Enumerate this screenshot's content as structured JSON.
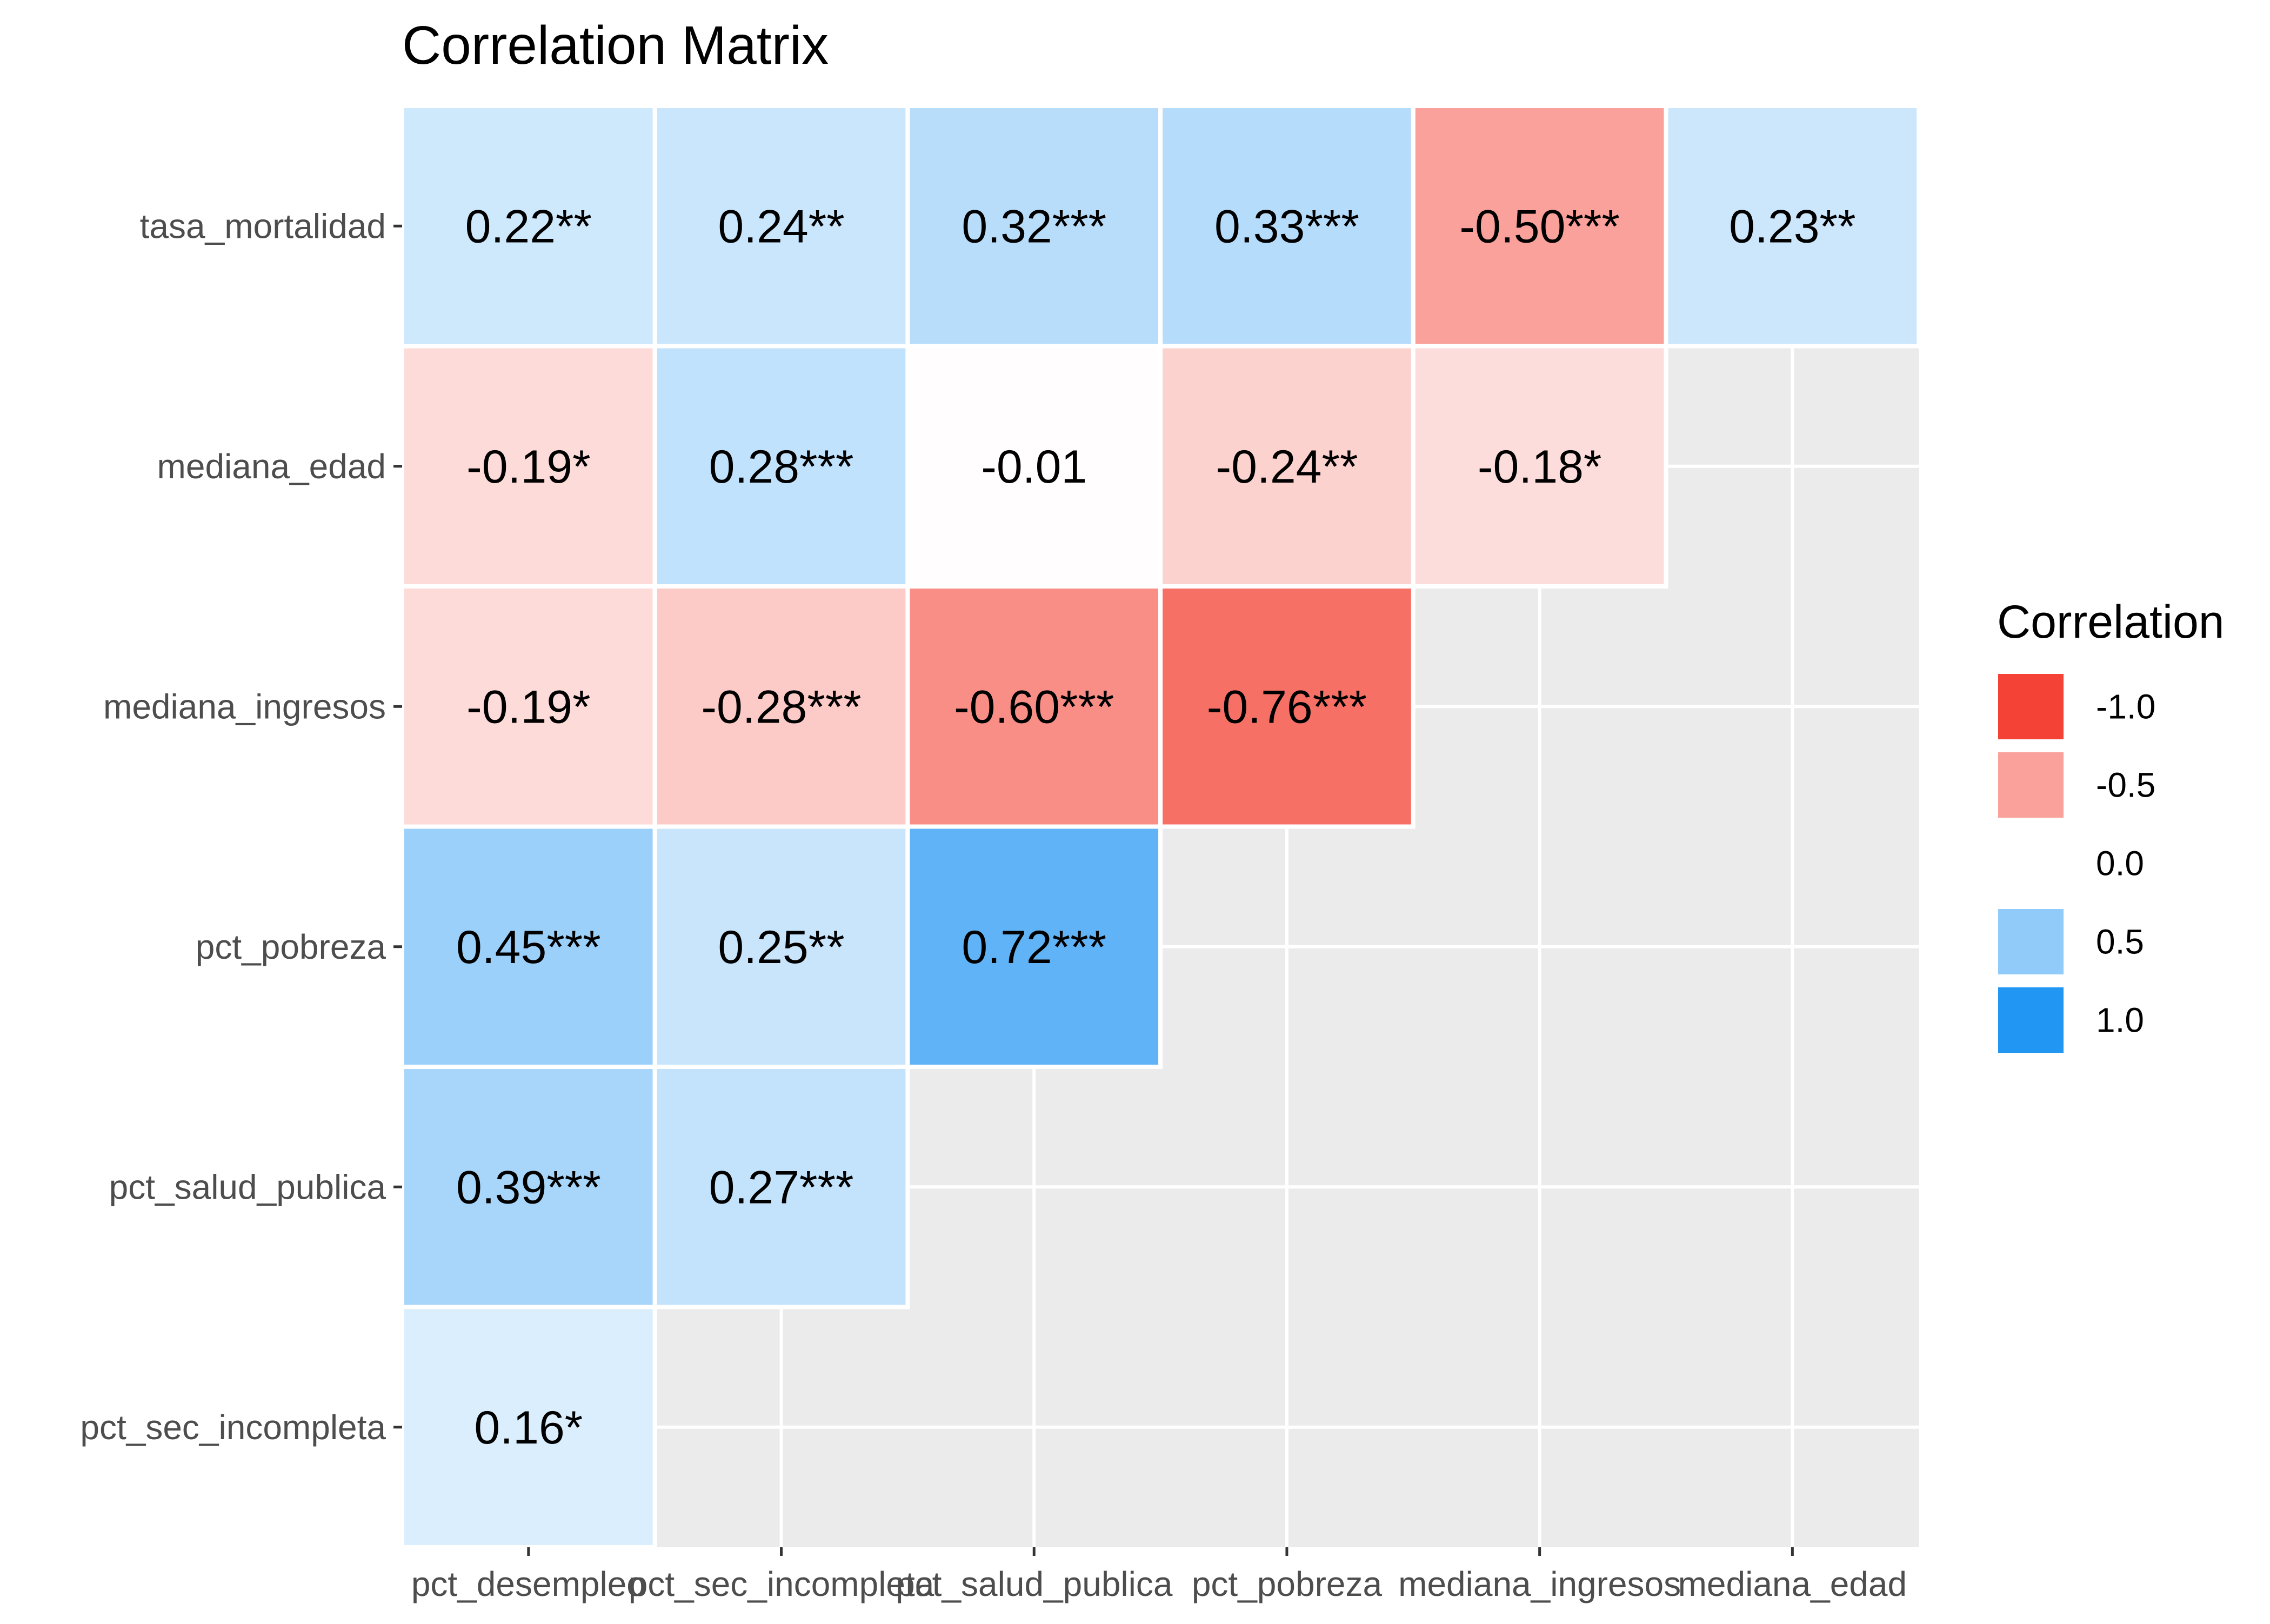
{
  "chart_data": {
    "type": "heatmap",
    "title": "Correlation Matrix",
    "x_categories": [
      "pct_desempleo",
      "pct_sec_incompleta",
      "pct_salud_publica",
      "pct_pobreza",
      "mediana_ingresos",
      "mediana_edad"
    ],
    "y_categories": [
      "tasa_mortalidad",
      "mediana_edad",
      "mediana_ingresos",
      "pct_pobreza",
      "pct_salud_publica",
      "pct_sec_incompleta"
    ],
    "cells": [
      {
        "x": "pct_desempleo",
        "y": "tasa_mortalidad",
        "value": 0.22,
        "label": "0.22**"
      },
      {
        "x": "pct_sec_incompleta",
        "y": "tasa_mortalidad",
        "value": 0.24,
        "label": "0.24**"
      },
      {
        "x": "pct_salud_publica",
        "y": "tasa_mortalidad",
        "value": 0.32,
        "label": "0.32***"
      },
      {
        "x": "pct_pobreza",
        "y": "tasa_mortalidad",
        "value": 0.33,
        "label": "0.33***"
      },
      {
        "x": "mediana_ingresos",
        "y": "tasa_mortalidad",
        "value": -0.5,
        "label": "-0.50***"
      },
      {
        "x": "mediana_edad",
        "y": "tasa_mortalidad",
        "value": 0.23,
        "label": "0.23**"
      },
      {
        "x": "pct_desempleo",
        "y": "mediana_edad",
        "value": -0.19,
        "label": "-0.19*"
      },
      {
        "x": "pct_sec_incompleta",
        "y": "mediana_edad",
        "value": 0.28,
        "label": "0.28***"
      },
      {
        "x": "pct_salud_publica",
        "y": "mediana_edad",
        "value": -0.01,
        "label": "-0.01"
      },
      {
        "x": "pct_pobreza",
        "y": "mediana_edad",
        "value": -0.24,
        "label": "-0.24**"
      },
      {
        "x": "mediana_ingresos",
        "y": "mediana_edad",
        "value": -0.18,
        "label": "-0.18*"
      },
      {
        "x": "pct_desempleo",
        "y": "mediana_ingresos",
        "value": -0.19,
        "label": "-0.19*"
      },
      {
        "x": "pct_sec_incompleta",
        "y": "mediana_ingresos",
        "value": -0.28,
        "label": "-0.28***"
      },
      {
        "x": "pct_salud_publica",
        "y": "mediana_ingresos",
        "value": -0.6,
        "label": "-0.60***"
      },
      {
        "x": "pct_pobreza",
        "y": "mediana_ingresos",
        "value": -0.76,
        "label": "-0.76***"
      },
      {
        "x": "pct_desempleo",
        "y": "pct_pobreza",
        "value": 0.45,
        "label": "0.45***"
      },
      {
        "x": "pct_sec_incompleta",
        "y": "pct_pobreza",
        "value": 0.25,
        "label": "0.25**"
      },
      {
        "x": "pct_salud_publica",
        "y": "pct_pobreza",
        "value": 0.72,
        "label": "0.72***"
      },
      {
        "x": "pct_desempleo",
        "y": "pct_salud_publica",
        "value": 0.39,
        "label": "0.39***"
      },
      {
        "x": "pct_sec_incompleta",
        "y": "pct_salud_publica",
        "value": 0.27,
        "label": "0.27***"
      },
      {
        "x": "pct_desempleo",
        "y": "pct_sec_incompleta",
        "value": 0.16,
        "label": "0.16*"
      }
    ],
    "value_range": [
      -1,
      1
    ],
    "colors": {
      "negative": "#F44336",
      "zero": "#FFFFFF",
      "positive": "#2196F3",
      "panel_background": "#EBEBEB",
      "grid": "#FFFFFF",
      "text": "#000000",
      "axis_text": "#4D4D4D"
    },
    "legend": {
      "title": "Correlation",
      "position": "right",
      "entries": [
        {
          "label": "-1.0",
          "value": -1.0
        },
        {
          "label": "-0.5",
          "value": -0.5
        },
        {
          "label": "0.0",
          "value": 0.0
        },
        {
          "label": "0.5",
          "value": 0.5
        },
        {
          "label": "1.0",
          "value": 1.0
        }
      ]
    },
    "grid": true
  }
}
